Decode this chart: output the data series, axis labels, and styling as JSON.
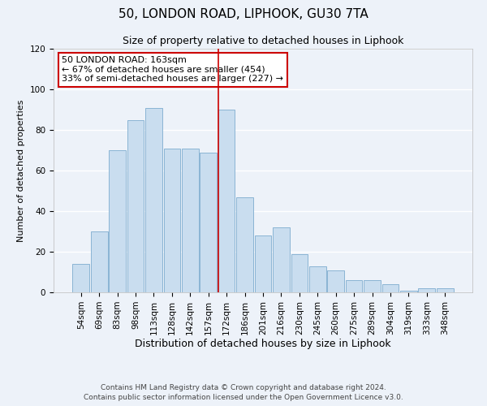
{
  "title": "50, LONDON ROAD, LIPHOOK, GU30 7TA",
  "subtitle": "Size of property relative to detached houses in Liphook",
  "xlabel": "Distribution of detached houses by size in Liphook",
  "ylabel": "Number of detached properties",
  "bar_labels": [
    "54sqm",
    "69sqm",
    "83sqm",
    "98sqm",
    "113sqm",
    "128sqm",
    "142sqm",
    "157sqm",
    "172sqm",
    "186sqm",
    "201sqm",
    "216sqm",
    "230sqm",
    "245sqm",
    "260sqm",
    "275sqm",
    "289sqm",
    "304sqm",
    "319sqm",
    "333sqm",
    "348sqm"
  ],
  "bar_heights": [
    14,
    30,
    70,
    85,
    91,
    71,
    71,
    69,
    90,
    47,
    28,
    32,
    19,
    13,
    11,
    6,
    6,
    4,
    1,
    2,
    2
  ],
  "bar_color": "#c9ddef",
  "bar_edge_color": "#8ab4d4",
  "ylim": [
    0,
    120
  ],
  "yticks": [
    0,
    20,
    40,
    60,
    80,
    100,
    120
  ],
  "vline_x": 7.55,
  "vline_color": "#cc0000",
  "annotation_title": "50 LONDON ROAD: 163sqm",
  "annotation_line1": "← 67% of detached houses are smaller (454)",
  "annotation_line2": "33% of semi-detached houses are larger (227) →",
  "annotation_box_color": "#ffffff",
  "annotation_box_edge": "#cc0000",
  "footer1": "Contains HM Land Registry data © Crown copyright and database right 2024.",
  "footer2": "Contains public sector information licensed under the Open Government Licence v3.0.",
  "background_color": "#edf2f9",
  "grid_color": "#ffffff",
  "title_fontsize": 11,
  "subtitle_fontsize": 9,
  "ylabel_fontsize": 8,
  "xlabel_fontsize": 9,
  "tick_fontsize": 7.5,
  "annotation_fontsize": 8,
  "footer_fontsize": 6.5
}
